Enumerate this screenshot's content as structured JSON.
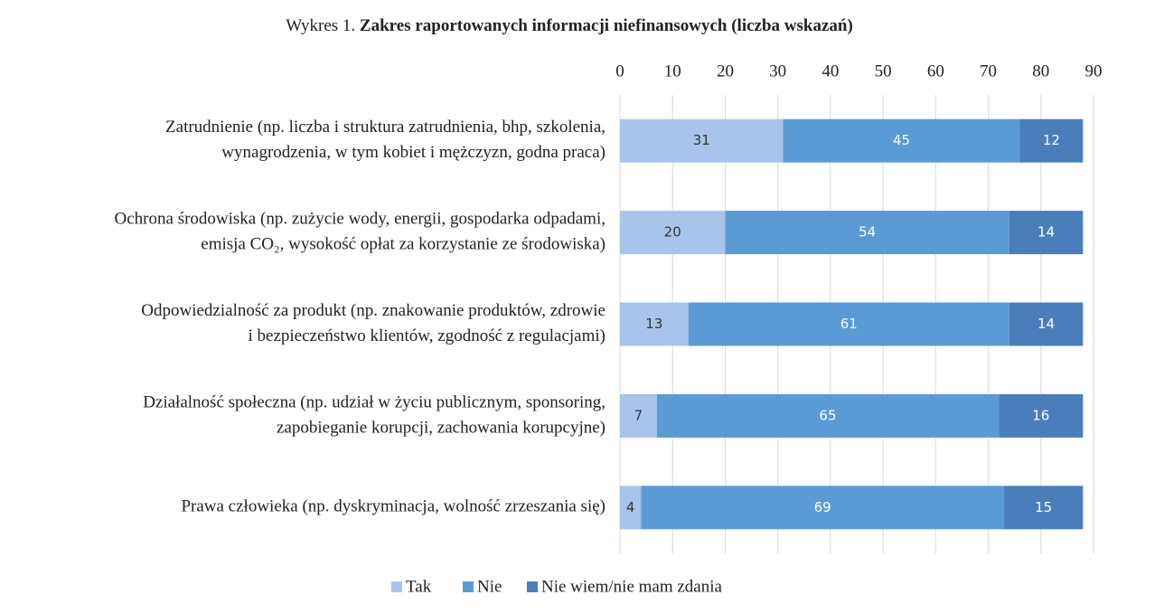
{
  "chart_data": {
    "type": "stacked_barh",
    "title_prefix": "Wykres 1.",
    "title": "Zakres raportowanych informacji niefinansowych (liczba wskazań)",
    "categories": [
      [
        "Zatrudnienie (np. liczba i struktura zatrudnienia, bhp, szkolenia,",
        "wynagrodzenia, w tym kobiet i mężczyzn, godna praca)"
      ],
      [
        "Ochrona środowiska (np. zużycie wody, energii, gospodarka odpadami,",
        "emisja CO₂, wysokość opłat za korzystanie ze środowiska)"
      ],
      [
        "Odpowiedzialność za produkt (np. znakowanie produktów, zdrowie",
        "i bezpieczeństwo klientów, zgodność z regulacjami)"
      ],
      [
        "Działalność społeczna (np. udział w życiu publicznym, sponsoring,",
        "zapobieganie korupcji, zachowania korupcyjne)"
      ],
      [
        "Prawa człowieka (np. dyskryminacja, wolność zrzeszania się)"
      ]
    ],
    "series": [
      {
        "name": "Tak",
        "color": "#a9c4ea",
        "label_color": "#333333",
        "values": [
          31,
          20,
          13,
          7,
          4
        ]
      },
      {
        "name": "Nie",
        "color": "#5b9bd5",
        "label_color": "#ffffff",
        "values": [
          45,
          54,
          61,
          65,
          69
        ]
      },
      {
        "name": "Nie wiem/nie mam zdania",
        "color": "#4a7ebb",
        "label_color": "#ffffff",
        "values": [
          12,
          14,
          14,
          16,
          15
        ]
      }
    ],
    "xlim": [
      0,
      90
    ],
    "xticks": [
      0,
      10,
      20,
      30,
      40,
      50,
      60,
      70,
      80,
      90
    ],
    "grid": true,
    "legend": "bottom"
  }
}
